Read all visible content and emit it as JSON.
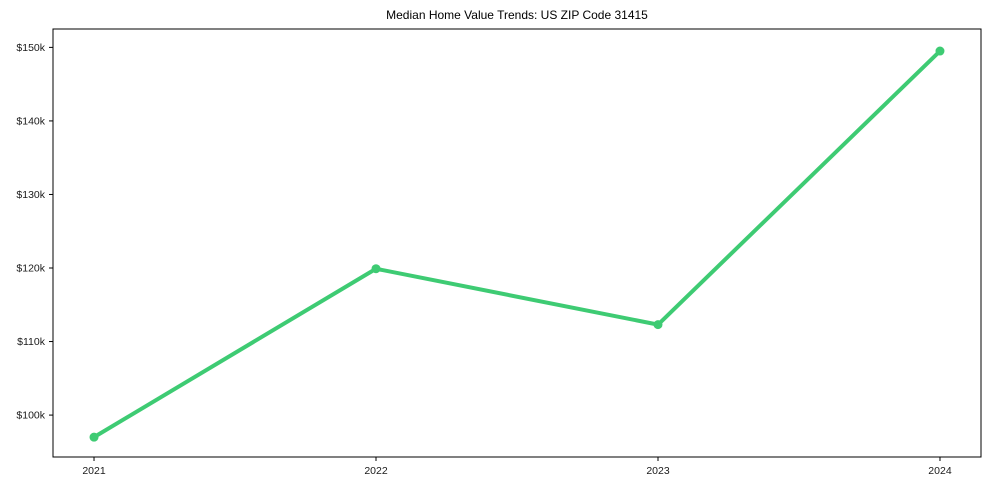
{
  "chart_data": {
    "type": "line",
    "title": "Median Home Value Trends: US ZIP Code 31415",
    "x": [
      "2021",
      "2022",
      "2023",
      "2024"
    ],
    "series": [
      {
        "name": "Median Home Value",
        "values": [
          97000,
          119900,
          112300,
          149500
        ]
      }
    ],
    "yticks": [
      {
        "value": 100000,
        "label": "$100k"
      },
      {
        "value": 110000,
        "label": "$110k"
      },
      {
        "value": 120000,
        "label": "$120k"
      },
      {
        "value": 130000,
        "label": "$130k"
      },
      {
        "value": 140000,
        "label": "$140k"
      },
      {
        "value": 150000,
        "label": "$150k"
      }
    ],
    "ylim": [
      94300,
      152500
    ],
    "grid": false,
    "legend_position": "none",
    "colors": {
      "line": "#3ECB73",
      "axis": "#000000",
      "tick_label": "#1a1a1a",
      "background": "#ffffff"
    }
  }
}
